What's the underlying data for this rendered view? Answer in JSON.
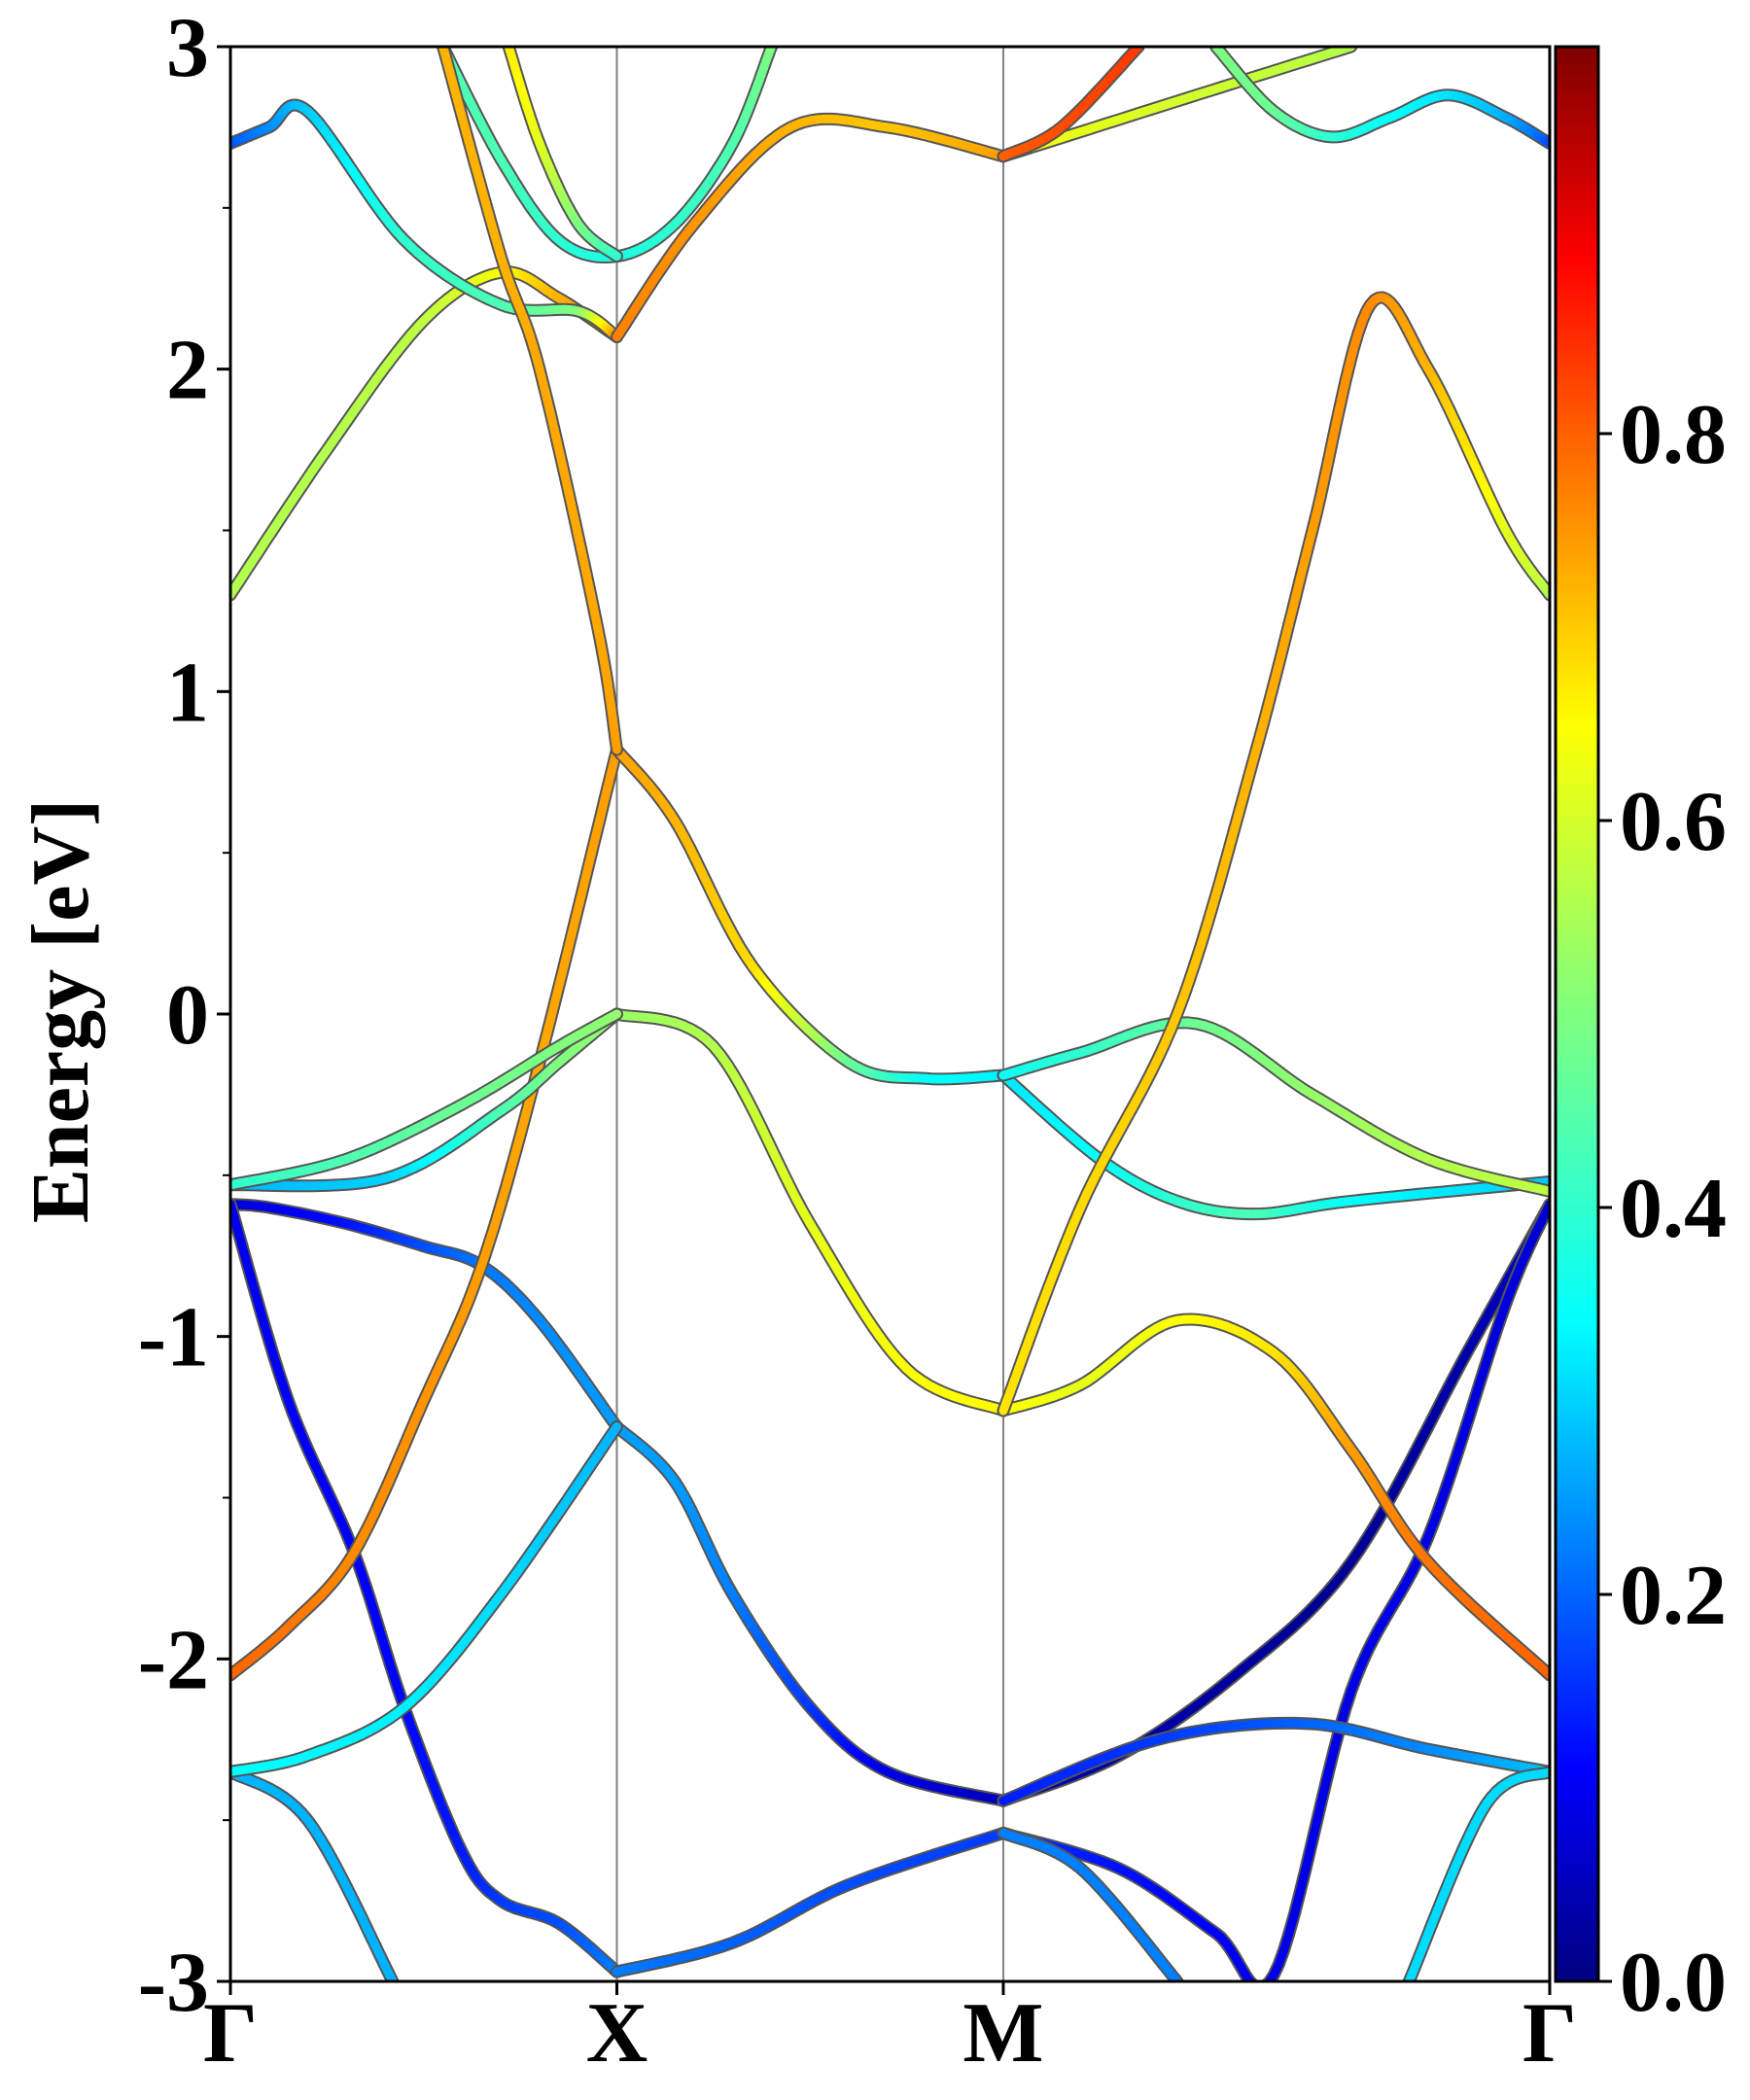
{
  "chart_data": {
    "type": "line",
    "title": "",
    "ylabel": "Energy [eV]",
    "xlabel": "",
    "ylim": [
      -3,
      3
    ],
    "yticks": [
      "3",
      "2",
      "1",
      "0",
      "-1",
      "-2",
      "-3"
    ],
    "high_symbol_points": [
      {
        "label": "Γ",
        "k": 0.0
      },
      {
        "label": "X",
        "k": 1.0
      },
      {
        "label": "M",
        "k": 2.0
      },
      {
        "label": "Γ",
        "k": 3.414
      }
    ],
    "grid": false,
    "colorbar": {
      "colormap": "jet",
      "range": [
        0.0,
        1.0
      ],
      "tick_labels": [
        "0.0",
        "0.2",
        "0.4",
        "0.6",
        "0.8"
      ],
      "tick_values": [
        0.0,
        0.2,
        0.4,
        0.6,
        0.8
      ]
    },
    "series": [
      {
        "points": [
          [
            0.0,
            -0.59
          ],
          [
            0.1,
            -0.6
          ],
          [
            0.3,
            -0.65
          ],
          [
            0.5,
            -0.72
          ],
          [
            0.65,
            -0.78
          ],
          [
            0.8,
            -0.95
          ],
          [
            1.0,
            -1.28
          ]
        ],
        "weight": [
          0.08,
          0.1,
          0.14,
          0.2,
          0.24,
          0.26,
          0.28
        ]
      },
      {
        "points": [
          [
            1.0,
            -1.28
          ],
          [
            1.15,
            -1.45
          ],
          [
            1.3,
            -1.8
          ],
          [
            1.5,
            -2.15
          ],
          [
            1.7,
            -2.35
          ],
          [
            2.0,
            -2.44
          ]
        ],
        "weight": [
          0.28,
          0.28,
          0.25,
          0.18,
          0.1,
          0.05
        ]
      },
      {
        "points": [
          [
            2.0,
            -2.44
          ],
          [
            2.3,
            -2.3
          ],
          [
            2.6,
            -2.05
          ],
          [
            2.9,
            -1.7
          ],
          [
            3.2,
            -1.05
          ],
          [
            3.414,
            -0.59
          ]
        ],
        "weight": [
          0.05,
          0.04,
          0.03,
          0.02,
          0.04,
          0.08
        ]
      },
      {
        "points": [
          [
            0.0,
            -0.59
          ],
          [
            0.15,
            -1.2
          ],
          [
            0.32,
            -1.67
          ],
          [
            0.45,
            -2.15
          ],
          [
            0.6,
            -2.6
          ],
          [
            0.7,
            -2.75
          ],
          [
            0.85,
            -2.82
          ],
          [
            1.0,
            -2.97
          ]
        ],
        "weight": [
          0.1,
          0.12,
          0.12,
          0.13,
          0.15,
          0.18,
          0.2,
          0.25
        ]
      },
      {
        "points": [
          [
            1.0,
            -2.97
          ],
          [
            1.3,
            -2.88
          ],
          [
            1.6,
            -2.7
          ],
          [
            2.0,
            -2.54
          ]
        ],
        "weight": [
          0.25,
          0.22,
          0.2,
          0.18
        ]
      },
      {
        "points": [
          [
            2.0,
            -2.54
          ],
          [
            2.3,
            -2.65
          ],
          [
            2.55,
            -2.85
          ],
          [
            2.7,
            -2.98
          ],
          [
            2.9,
            -2.1
          ],
          [
            3.1,
            -1.62
          ],
          [
            3.3,
            -0.9
          ],
          [
            3.414,
            -0.59
          ]
        ],
        "weight": [
          0.18,
          0.14,
          0.12,
          0.1,
          0.1,
          0.1,
          0.09,
          0.08
        ]
      },
      {
        "points": [
          [
            2.0,
            -2.54
          ],
          [
            2.2,
            -2.65
          ],
          [
            2.45,
            -3.0
          ]
        ],
        "weight": [
          0.25,
          0.25,
          0.25
        ]
      },
      {
        "points": [
          [
            0.0,
            -2.35
          ],
          [
            0.2,
            -2.5
          ],
          [
            0.42,
            -3.0
          ]
        ],
        "weight": [
          0.3,
          0.3,
          0.3
        ]
      },
      {
        "points": [
          [
            0.0,
            -2.35
          ],
          [
            0.2,
            -2.3
          ],
          [
            0.45,
            -2.15
          ],
          [
            0.7,
            -1.8
          ],
          [
            1.0,
            -1.28
          ]
        ],
        "weight": [
          0.38,
          0.37,
          0.36,
          0.34,
          0.3
        ]
      },
      {
        "points": [
          [
            2.0,
            -2.44
          ],
          [
            2.4,
            -2.25
          ],
          [
            2.78,
            -2.2
          ],
          [
            3.1,
            -2.28
          ],
          [
            3.414,
            -2.35
          ]
        ],
        "weight": [
          0.15,
          0.18,
          0.22,
          0.26,
          0.32
        ]
      },
      {
        "points": [
          [
            3.414,
            -2.35
          ],
          [
            3.25,
            -2.45
          ],
          [
            3.05,
            -3.0
          ]
        ],
        "weight": [
          0.34,
          0.34,
          0.34
        ]
      },
      {
        "points": [
          [
            0.0,
            -2.05
          ],
          [
            0.15,
            -1.9
          ],
          [
            0.32,
            -1.67
          ],
          [
            0.5,
            -1.2
          ],
          [
            0.65,
            -0.78
          ],
          [
            0.8,
            -0.15
          ],
          [
            1.0,
            0.82
          ]
        ],
        "weight": [
          0.78,
          0.76,
          0.74,
          0.73,
          0.72,
          0.71,
          0.72
        ]
      },
      {
        "points": [
          [
            1.0,
            0.82
          ],
          [
            1.15,
            0.6
          ],
          [
            1.35,
            0.15
          ],
          [
            1.6,
            -0.15
          ],
          [
            1.8,
            -0.2
          ],
          [
            2.0,
            -0.19
          ]
        ],
        "weight": [
          0.72,
          0.7,
          0.66,
          0.48,
          0.38,
          0.36
        ]
      },
      {
        "points": [
          [
            2.0,
            -0.19
          ],
          [
            2.25,
            -0.45
          ],
          [
            2.45,
            -0.58
          ],
          [
            2.65,
            -0.62
          ],
          [
            2.9,
            -0.58
          ],
          [
            3.414,
            -0.52
          ]
        ],
        "weight": [
          0.35,
          0.38,
          0.42,
          0.45,
          0.38,
          0.32
        ]
      },
      {
        "points": [
          [
            2.0,
            -0.19
          ],
          [
            2.2,
            -0.12
          ],
          [
            2.5,
            -0.03
          ],
          [
            2.8,
            -0.25
          ],
          [
            3.1,
            -0.45
          ],
          [
            3.414,
            -0.55
          ]
        ],
        "weight": [
          0.38,
          0.42,
          0.48,
          0.52,
          0.55,
          0.56
        ]
      },
      {
        "points": [
          [
            0.0,
            -0.53
          ],
          [
            0.4,
            -0.51
          ],
          [
            0.7,
            -0.3
          ],
          [
            0.85,
            -0.15
          ],
          [
            1.0,
            0.0
          ]
        ],
        "weight": [
          0.3,
          0.33,
          0.45,
          0.5,
          0.52
        ]
      },
      {
        "points": [
          [
            1.0,
            0.0
          ],
          [
            1.25,
            -0.1
          ],
          [
            1.5,
            -0.65
          ],
          [
            1.75,
            -1.1
          ],
          [
            2.0,
            -1.23
          ]
        ],
        "weight": [
          0.52,
          0.55,
          0.6,
          0.62,
          0.63
        ]
      },
      {
        "points": [
          [
            2.0,
            -1.23
          ],
          [
            2.2,
            -1.15
          ],
          [
            2.45,
            -0.95
          ],
          [
            2.7,
            -1.05
          ],
          [
            2.9,
            -1.35
          ],
          [
            3.1,
            -1.7
          ],
          [
            3.414,
            -2.05
          ]
        ],
        "weight": [
          0.63,
          0.6,
          0.62,
          0.65,
          0.72,
          0.76,
          0.78
        ]
      },
      {
        "points": [
          [
            2.0,
            -1.23
          ],
          [
            2.2,
            -0.6
          ],
          [
            2.45,
            0.0
          ],
          [
            2.65,
            0.8
          ],
          [
            2.8,
            1.5
          ],
          [
            2.95,
            2.2
          ],
          [
            3.1,
            2.0
          ],
          [
            3.3,
            1.5
          ],
          [
            3.414,
            1.3
          ]
        ],
        "weight": [
          0.65,
          0.66,
          0.68,
          0.7,
          0.72,
          0.74,
          0.7,
          0.6,
          0.55
        ]
      },
      {
        "points": [
          [
            0.0,
            -0.53
          ],
          [
            0.3,
            -0.45
          ],
          [
            0.6,
            -0.28
          ],
          [
            0.85,
            -0.1
          ],
          [
            1.0,
            0.0
          ]
        ],
        "weight": [
          0.42,
          0.45,
          0.48,
          0.5,
          0.52
        ]
      },
      {
        "points": [
          [
            0.0,
            1.3
          ],
          [
            0.25,
            1.75
          ],
          [
            0.5,
            2.15
          ],
          [
            0.7,
            2.3
          ],
          [
            0.85,
            2.22
          ],
          [
            1.0,
            2.1
          ]
        ],
        "weight": [
          0.55,
          0.55,
          0.56,
          0.62,
          0.7,
          0.75
        ]
      },
      {
        "points": [
          [
            0.0,
            2.7
          ],
          [
            0.1,
            2.75
          ],
          [
            0.2,
            2.8
          ],
          [
            0.45,
            2.4
          ],
          [
            0.7,
            2.2
          ],
          [
            0.9,
            2.18
          ],
          [
            1.0,
            2.1
          ]
        ],
        "weight": [
          0.2,
          0.26,
          0.32,
          0.42,
          0.45,
          0.5,
          0.75
        ]
      },
      {
        "points": [
          [
            1.0,
            2.1
          ],
          [
            1.2,
            2.45
          ],
          [
            1.45,
            2.75
          ],
          [
            1.7,
            2.75
          ],
          [
            2.0,
            2.66
          ]
        ],
        "weight": [
          0.75,
          0.73,
          0.7,
          0.68,
          0.72
        ]
      },
      {
        "points": [
          [
            2.0,
            2.66
          ],
          [
            2.5,
            2.85
          ],
          [
            2.9,
            3.0
          ]
        ],
        "weight": [
          0.62,
          0.58,
          0.55
        ]
      },
      {
        "points": [
          [
            2.0,
            2.66
          ],
          [
            2.15,
            2.75
          ],
          [
            2.35,
            3.0
          ]
        ],
        "weight": [
          0.78,
          0.8,
          0.82
        ]
      },
      {
        "points": [
          [
            2.55,
            3.0
          ],
          [
            2.7,
            2.8
          ],
          [
            2.85,
            2.72
          ],
          [
            3.0,
            2.78
          ],
          [
            3.15,
            2.85
          ],
          [
            3.3,
            2.78
          ],
          [
            3.414,
            2.7
          ]
        ],
        "weight": [
          0.5,
          0.48,
          0.42,
          0.38,
          0.35,
          0.3,
          0.2
        ]
      },
      {
        "points": [
          [
            0.55,
            3.0
          ],
          [
            0.7,
            2.65
          ],
          [
            0.85,
            2.4
          ],
          [
            1.0,
            2.35
          ],
          [
            1.15,
            2.45
          ],
          [
            1.3,
            2.7
          ],
          [
            1.4,
            3.0
          ]
        ],
        "weight": [
          0.45,
          0.45,
          0.42,
          0.4,
          0.42,
          0.45,
          0.5
        ]
      },
      {
        "points": [
          [
            0.55,
            3.0
          ],
          [
            0.7,
            2.35
          ],
          [
            0.8,
            2.0
          ],
          [
            0.95,
            1.2
          ],
          [
            1.0,
            0.82
          ]
        ],
        "weight": [
          0.7,
          0.7,
          0.71,
          0.71,
          0.72
        ]
      },
      {
        "points": [
          [
            0.72,
            3.0
          ],
          [
            0.8,
            2.7
          ],
          [
            0.9,
            2.45
          ],
          [
            1.0,
            2.35
          ]
        ],
        "weight": [
          0.65,
          0.6,
          0.5,
          0.42
        ]
      }
    ]
  }
}
